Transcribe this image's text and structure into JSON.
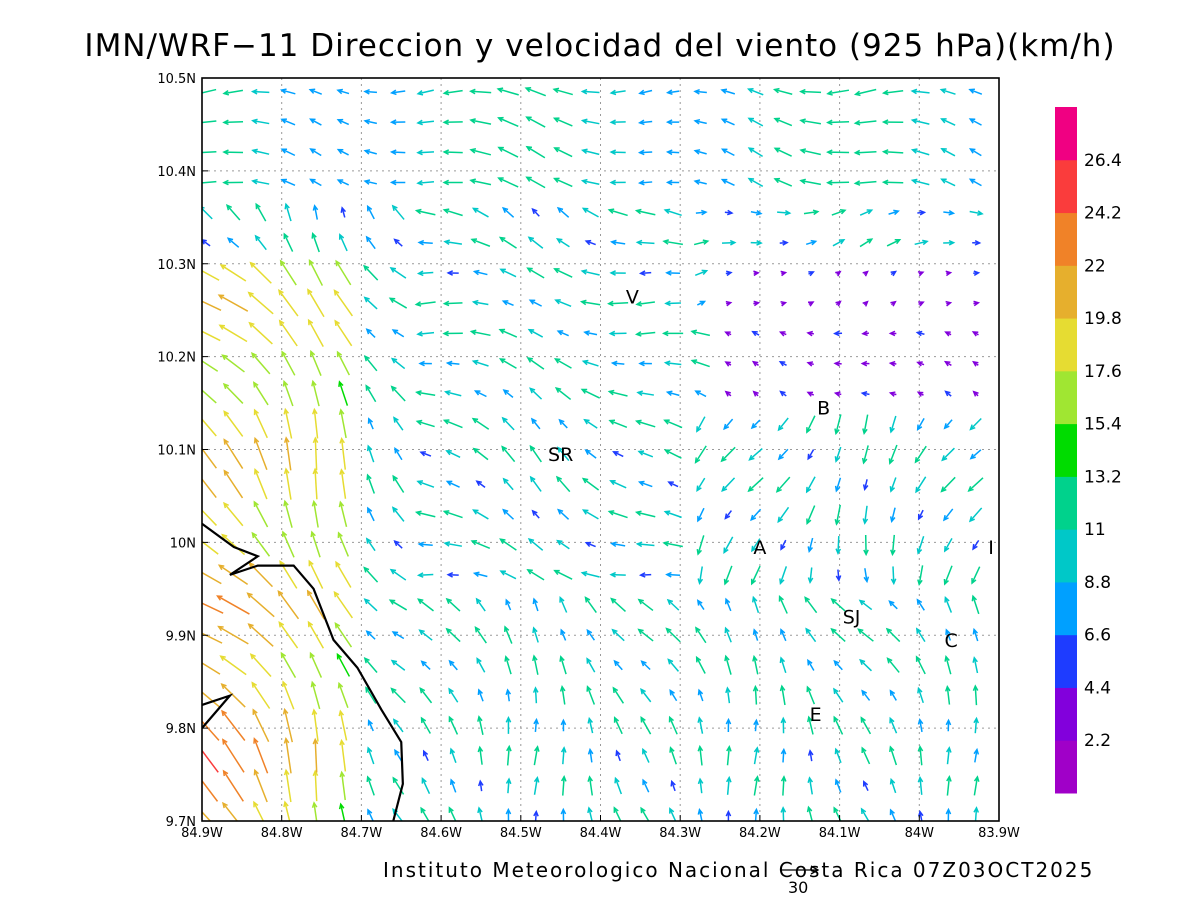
{
  "title": "IMN/WRF−11 Direccion y velocidad del viento (925 hPa)(km/h)",
  "footer": "Instituto Meteorologico Nacional Costa Rica 07Z03OCT2025",
  "reference_vector_label": "30",
  "reference_vector_speed": 30,
  "map": {
    "lon_range": [
      -84.9,
      -83.9
    ],
    "lat_range": [
      9.7,
      10.5
    ],
    "x_tick_labels": [
      "84.9W",
      "84.8W",
      "84.7W",
      "84.6W",
      "84.5W",
      "84.4W",
      "84.3W",
      "84.2W",
      "84.1W",
      "84W",
      "83.9W"
    ],
    "y_tick_labels": [
      "9.7N",
      "9.8N",
      "9.9N",
      "10N",
      "10.1N",
      "10.2N",
      "10.3N",
      "10.4N",
      "10.5N"
    ],
    "grid": true,
    "cities": [
      {
        "label": "V",
        "lon": -84.36,
        "lat": 10.265
      },
      {
        "label": "B",
        "lon": -84.12,
        "lat": 10.145
      },
      {
        "label": "SR",
        "lon": -84.45,
        "lat": 10.095
      },
      {
        "label": "A",
        "lon": -84.2,
        "lat": 9.995
      },
      {
        "label": "I",
        "lon": -83.91,
        "lat": 9.995
      },
      {
        "label": "SJ",
        "lon": -84.085,
        "lat": 9.92
      },
      {
        "label": "C",
        "lon": -83.96,
        "lat": 9.895
      },
      {
        "label": "E",
        "lon": -84.13,
        "lat": 9.815
      }
    ]
  },
  "colorbar": {
    "labels": [
      "2.2",
      "4.4",
      "6.6",
      "8.8",
      "11",
      "13.2",
      "15.4",
      "17.6",
      "19.8",
      "22",
      "24.2",
      "26.4"
    ],
    "colors": [
      "#a000c8",
      "#8200dc",
      "#1e3cff",
      "#00a0ff",
      "#00c8c8",
      "#00d28c",
      "#00dc00",
      "#a0e632",
      "#e6dc32",
      "#e6af2d",
      "#f08228",
      "#fa3c3c",
      "#f00082"
    ]
  }
}
